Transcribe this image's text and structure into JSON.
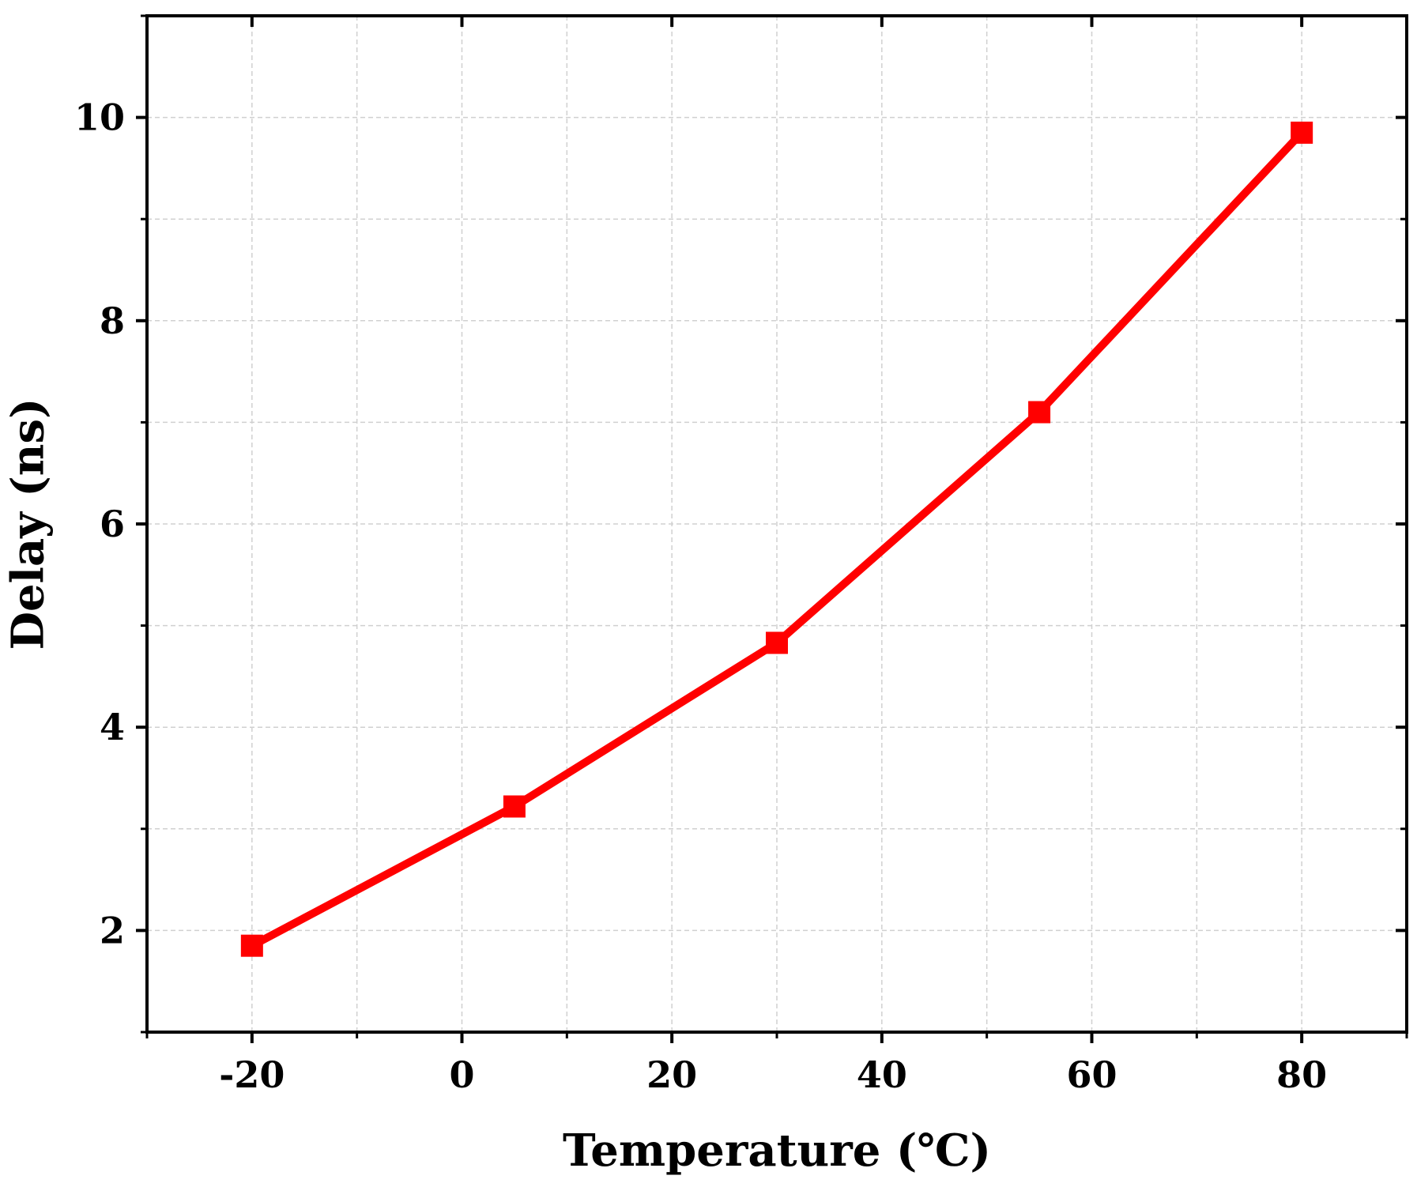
{
  "chart_data": {
    "type": "line",
    "title": "",
    "xlabel": "Temperature (℃)",
    "ylabel": "Delay (ns)",
    "xlim": [
      -30,
      90
    ],
    "ylim": [
      1,
      11
    ],
    "x_ticks": [
      -20,
      0,
      20,
      40,
      60,
      80
    ],
    "x_tick_labels": [
      "-20",
      "0",
      "20",
      "40",
      "60",
      "80"
    ],
    "x_minor_ticks": [
      -30,
      -10,
      10,
      30,
      50,
      70,
      90
    ],
    "y_ticks": [
      2,
      4,
      6,
      8,
      10
    ],
    "y_tick_labels": [
      "2",
      "4",
      "6",
      "8",
      "10"
    ],
    "y_minor_ticks": [
      1,
      3,
      5,
      7,
      9,
      11
    ],
    "grid": true,
    "legend": "none",
    "series": [
      {
        "color": "#ff0000",
        "marker": "square",
        "x": [
          -20,
          5,
          30,
          55,
          80
        ],
        "y": [
          1.85,
          3.22,
          4.83,
          7.1,
          9.85
        ]
      }
    ]
  }
}
